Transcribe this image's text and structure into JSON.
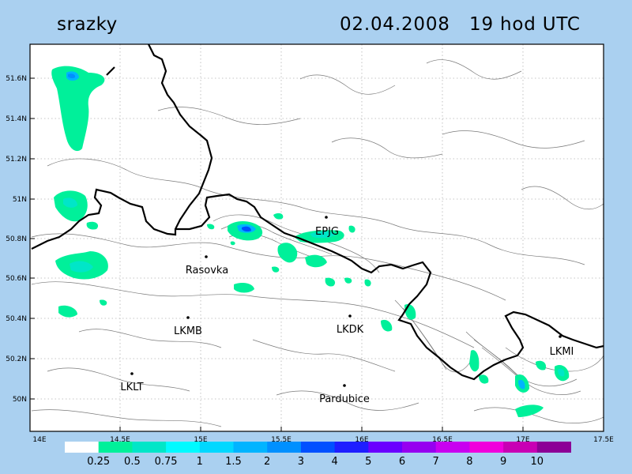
{
  "header": {
    "variable": "srazky",
    "datetime": "02.04.2008   19 hod UTC"
  },
  "axes": {
    "lat_ticks": [
      "51.6N",
      "51.4N",
      "51.2N",
      "51N",
      "50.8N",
      "50.6N",
      "50.4N",
      "50.2N",
      "50N"
    ],
    "lon_ticks": [
      "14E",
      "14.5E",
      "15E",
      "15.5E",
      "16E",
      "16.5E",
      "17E",
      "17.5E"
    ]
  },
  "places": [
    {
      "name": "EPJG"
    },
    {
      "name": "Rasovka"
    },
    {
      "name": "LKMB"
    },
    {
      "name": "LKDK"
    },
    {
      "name": "LKMI"
    },
    {
      "name": "LKLT"
    },
    {
      "name": "Pardubice"
    }
  ],
  "legend": {
    "labels": [
      "0.25",
      "0.5",
      "0.75",
      "1",
      "1.5",
      "2",
      "3",
      "4",
      "5",
      "6",
      "7",
      "8",
      "9",
      "10"
    ],
    "colors": [
      "#ffffff",
      "#00f09a",
      "#00e6c8",
      "#00faff",
      "#00d8ff",
      "#00b4ff",
      "#0090ff",
      "#0050ff",
      "#1e1eff",
      "#6a00ff",
      "#9600f0",
      "#c800f0",
      "#f000dc",
      "#c800b4",
      "#8c0096"
    ]
  },
  "colors": {
    "background": "#aad0f0",
    "plot_area": "#ffffff",
    "contour": "#7a7a7a",
    "border": "#000000",
    "grid": "#b4b4b4"
  }
}
